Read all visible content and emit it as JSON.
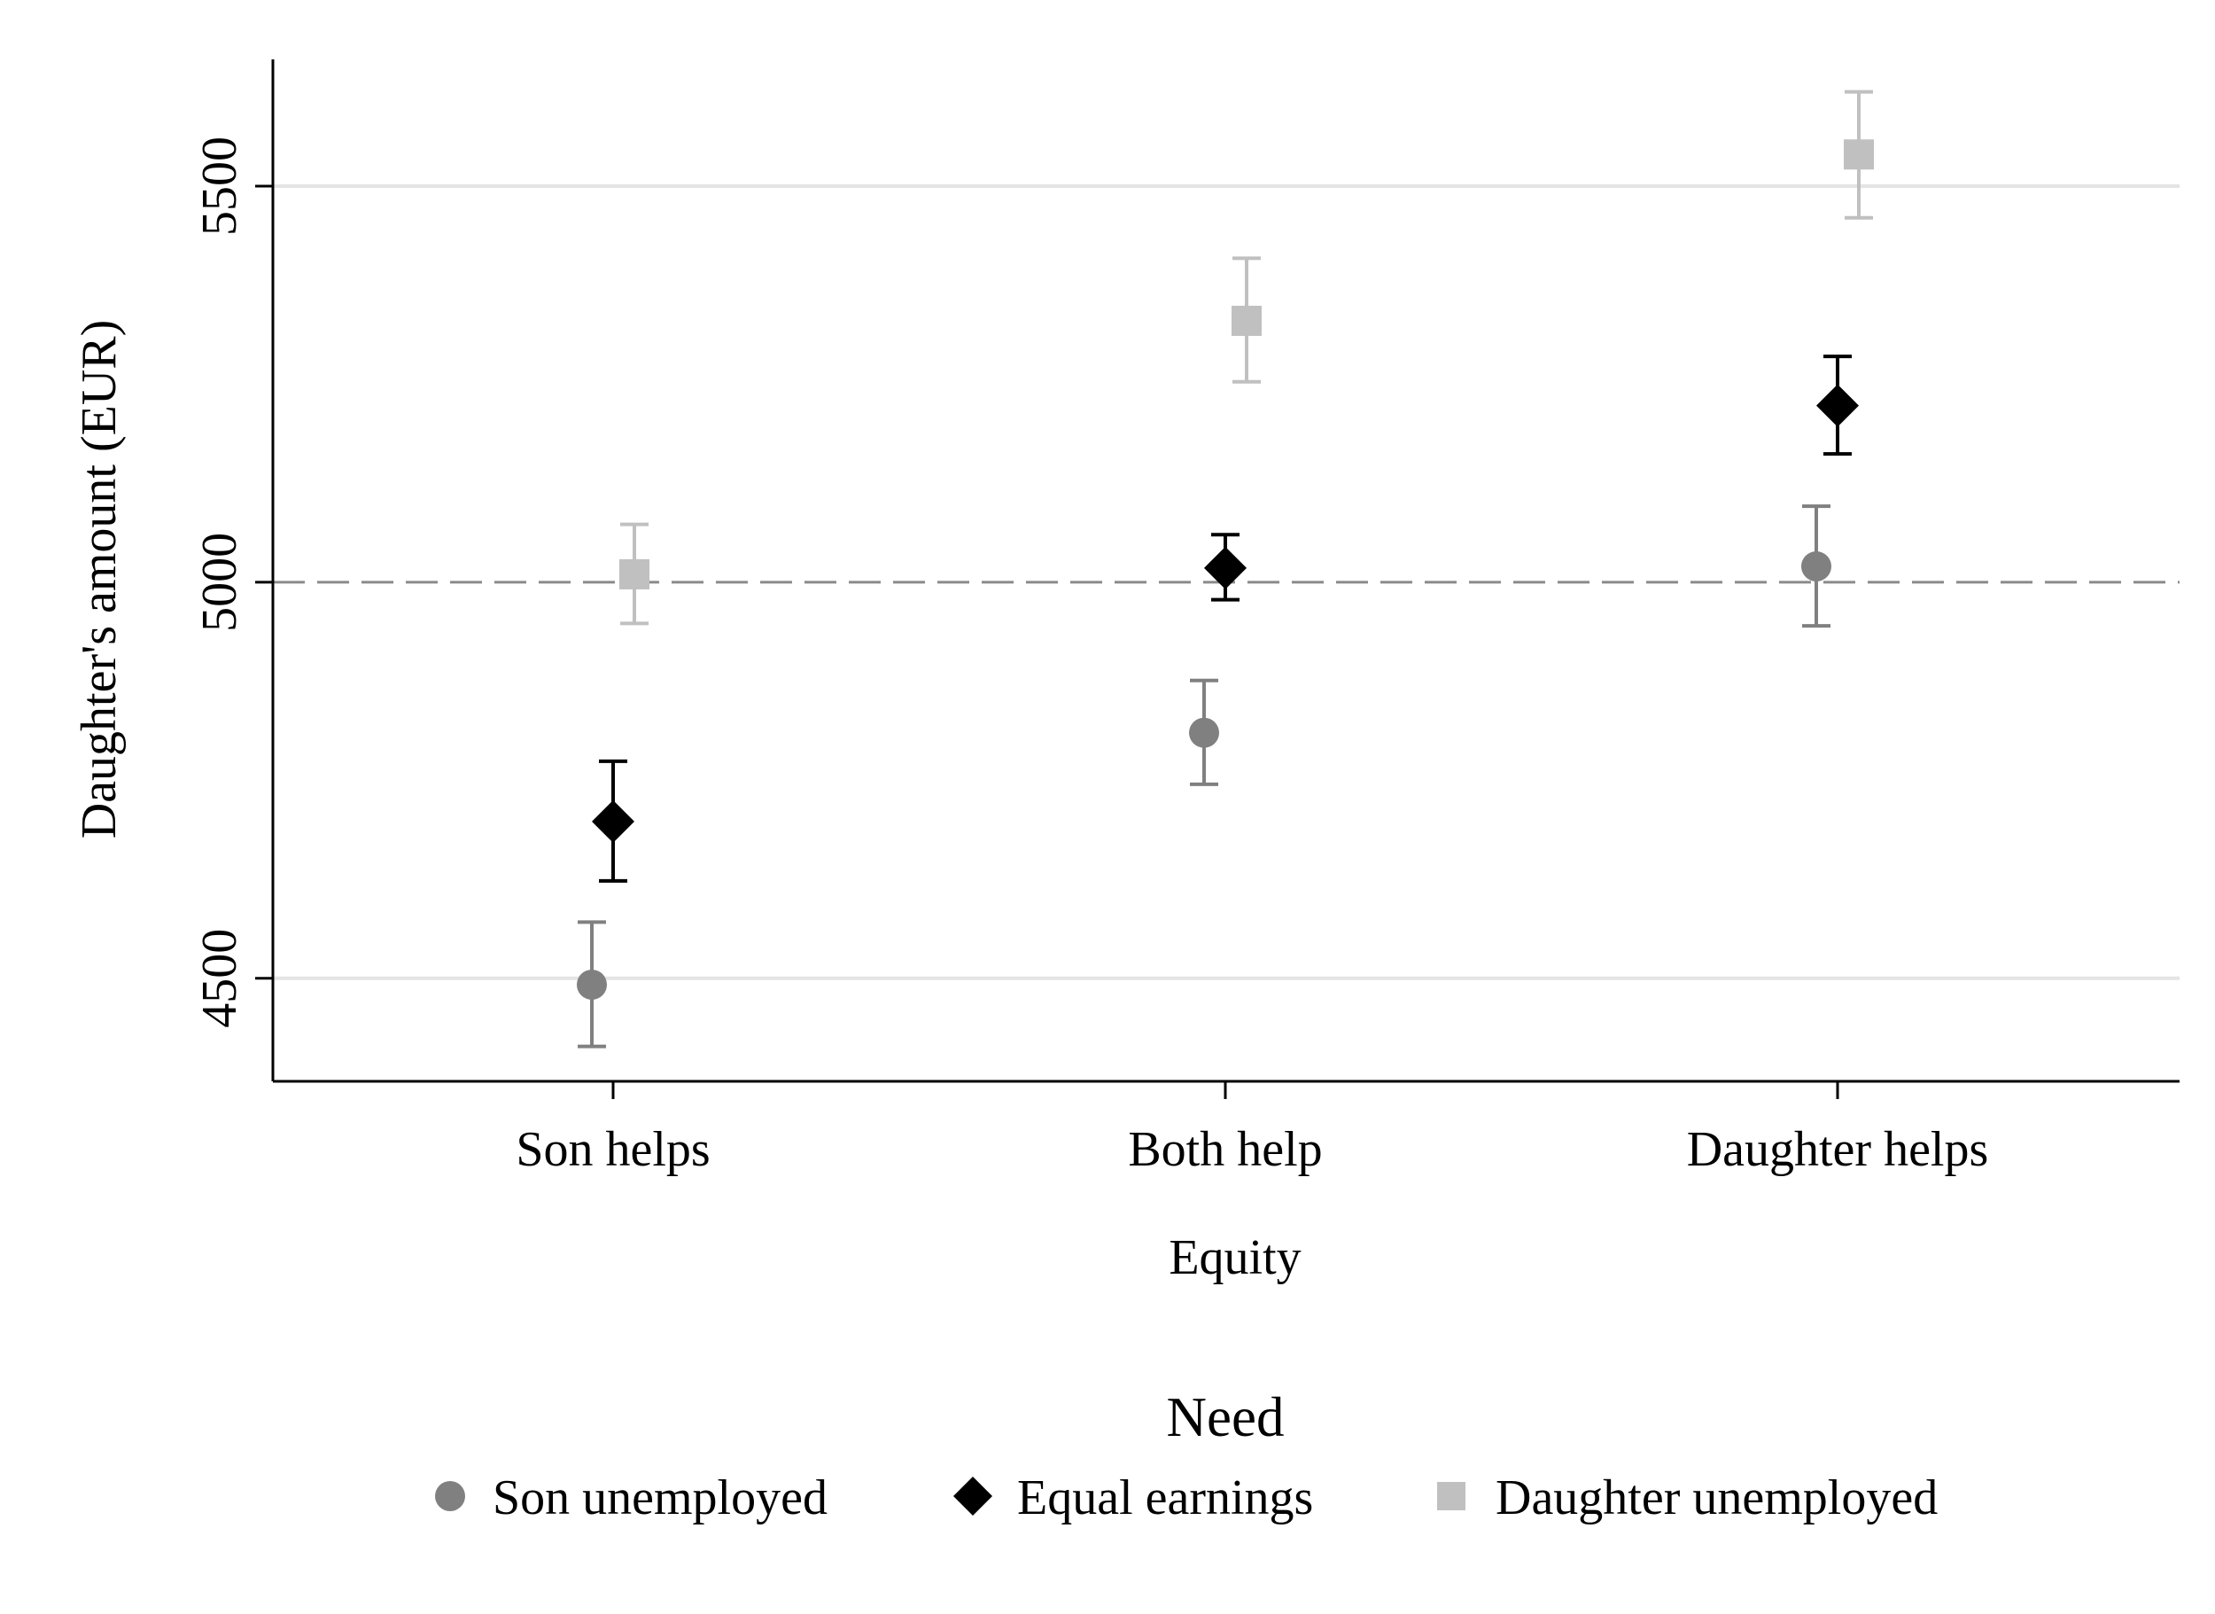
{
  "chart_data": {
    "type": "scatter",
    "xlabel": "Equity",
    "ylabel": "Daughter's amount (EUR)",
    "categories": [
      "Son helps",
      "Both help",
      "Daughter helps"
    ],
    "ylim": [
      4370,
      5660
    ],
    "yticks": [
      4500,
      5000,
      5500
    ],
    "reference_line": 5000,
    "grid": "horizontal",
    "legend": {
      "title": "Need",
      "placement": "bottom"
    },
    "series": [
      {
        "name": "Son unemployed",
        "marker": "circle",
        "color": "#808080",
        "values": [
          4492,
          4810,
          5020
        ],
        "ci_low": [
          4414,
          4745,
          4945
        ],
        "ci_high": [
          4571,
          4876,
          5096
        ]
      },
      {
        "name": "Equal earnings",
        "marker": "diamond",
        "color": "#000000",
        "values": [
          4698,
          5018,
          5223
        ],
        "ci_low": [
          4623,
          4978,
          5162
        ],
        "ci_high": [
          4774,
          5060,
          5285
        ]
      },
      {
        "name": "Daughter unemployed",
        "marker": "square",
        "color": "#c0c0c0",
        "values": [
          5010,
          5330,
          5540
        ],
        "ci_low": [
          4948,
          5253,
          5460
        ],
        "ci_high": [
          5073,
          5409,
          5619
        ]
      }
    ]
  }
}
